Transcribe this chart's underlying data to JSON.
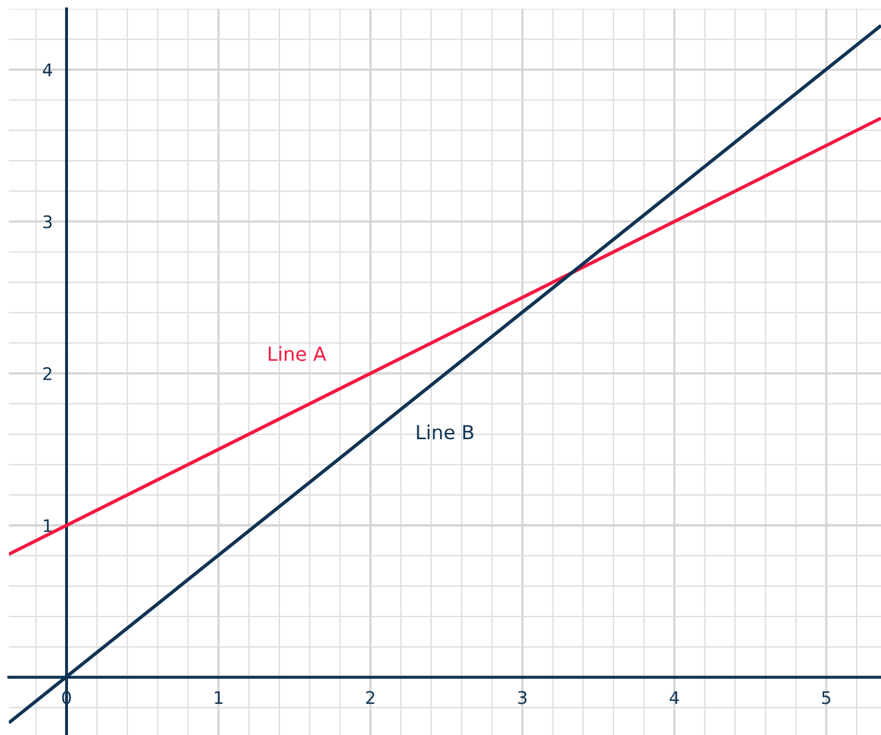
{
  "chart_data": {
    "type": "line",
    "x": [
      -0.38,
      5.36
    ],
    "series": [
      {
        "name": "Line A",
        "color": "#f5183f",
        "values": [
          0.81,
          3.68
        ]
      },
      {
        "name": "Line B",
        "color": "#0f3353",
        "values": [
          -0.3,
          4.29
        ]
      }
    ],
    "xlim": [
      -0.38,
      5.36
    ],
    "ylim": [
      -0.38,
      4.4
    ],
    "xticks": [
      0,
      1,
      2,
      3,
      4,
      5
    ],
    "yticks": [
      1,
      2,
      3,
      4
    ],
    "grid": true,
    "marker": "none",
    "line_style": "solid",
    "legend": false
  }
}
